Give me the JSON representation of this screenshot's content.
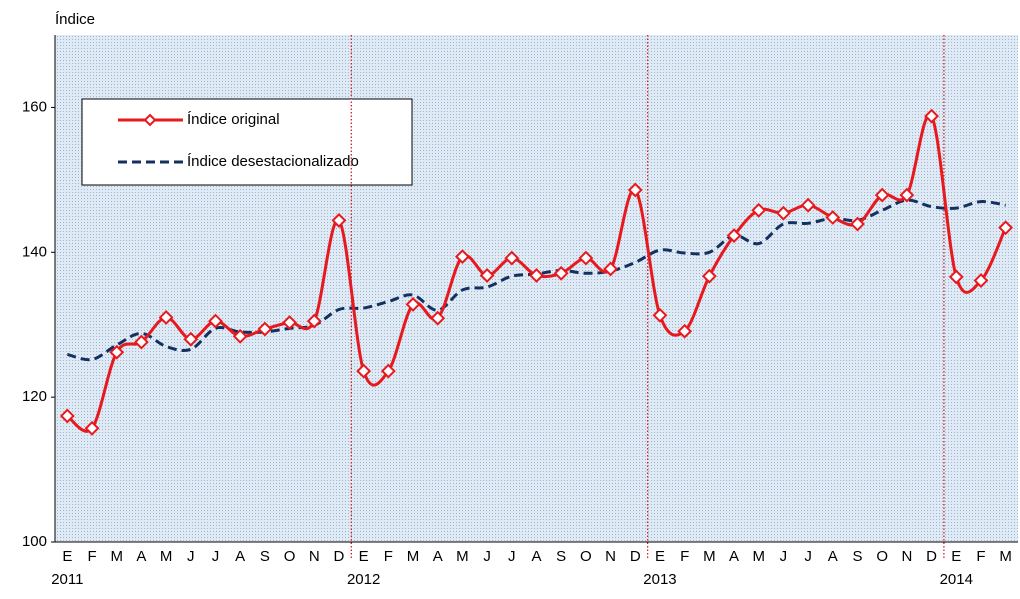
{
  "chart_data": {
    "type": "line",
    "y_label": "Índice",
    "categories": [
      "E",
      "F",
      "M",
      "A",
      "M",
      "J",
      "J",
      "A",
      "S",
      "O",
      "N",
      "D",
      "E",
      "F",
      "M",
      "A",
      "M",
      "J",
      "J",
      "A",
      "S",
      "O",
      "N",
      "D",
      "E",
      "F",
      "M",
      "A",
      "M",
      "J",
      "J",
      "A",
      "S",
      "O",
      "N",
      "D",
      "E",
      "F",
      "M"
    ],
    "year_labels": [
      {
        "at": 0,
        "label": "2011"
      },
      {
        "at": 12,
        "label": "2012"
      },
      {
        "at": 24,
        "label": "2013"
      },
      {
        "at": 36,
        "label": "2014"
      }
    ],
    "series": [
      {
        "name": "Índice original",
        "color": "#e8191e",
        "marker": "diamond",
        "values": [
          117.4,
          115.7,
          126.2,
          127.6,
          131.0,
          128.0,
          130.5,
          128.4,
          129.4,
          130.3,
          130.5,
          144.4,
          123.6,
          123.6,
          132.8,
          130.9,
          139.4,
          136.8,
          139.2,
          136.8,
          137.1,
          139.2,
          137.7,
          148.6,
          131.3,
          129.1,
          136.7,
          142.3,
          145.8,
          145.4,
          146.5,
          144.8,
          143.9,
          147.9,
          147.9,
          158.8,
          136.6,
          136.1,
          143.4
        ]
      },
      {
        "name": "Índice desestacionalizado",
        "color": "#14305f",
        "dash": true,
        "values": [
          125.9,
          125.2,
          127.2,
          128.8,
          127.0,
          126.6,
          129.5,
          129.0,
          129.0,
          129.5,
          129.9,
          132.1,
          132.3,
          133.2,
          134.1,
          132.0,
          134.8,
          135.2,
          136.7,
          137.0,
          137.5,
          137.1,
          137.4,
          138.6,
          140.3,
          139.9,
          140.0,
          142.3,
          141.2,
          143.9,
          144.0,
          144.7,
          144.4,
          145.8,
          147.2,
          146.3,
          146.1,
          147.0,
          146.5
        ]
      }
    ],
    "ylim": [
      100,
      170
    ],
    "yticks": [
      100,
      120,
      140,
      160
    ],
    "legend": "upper left"
  }
}
